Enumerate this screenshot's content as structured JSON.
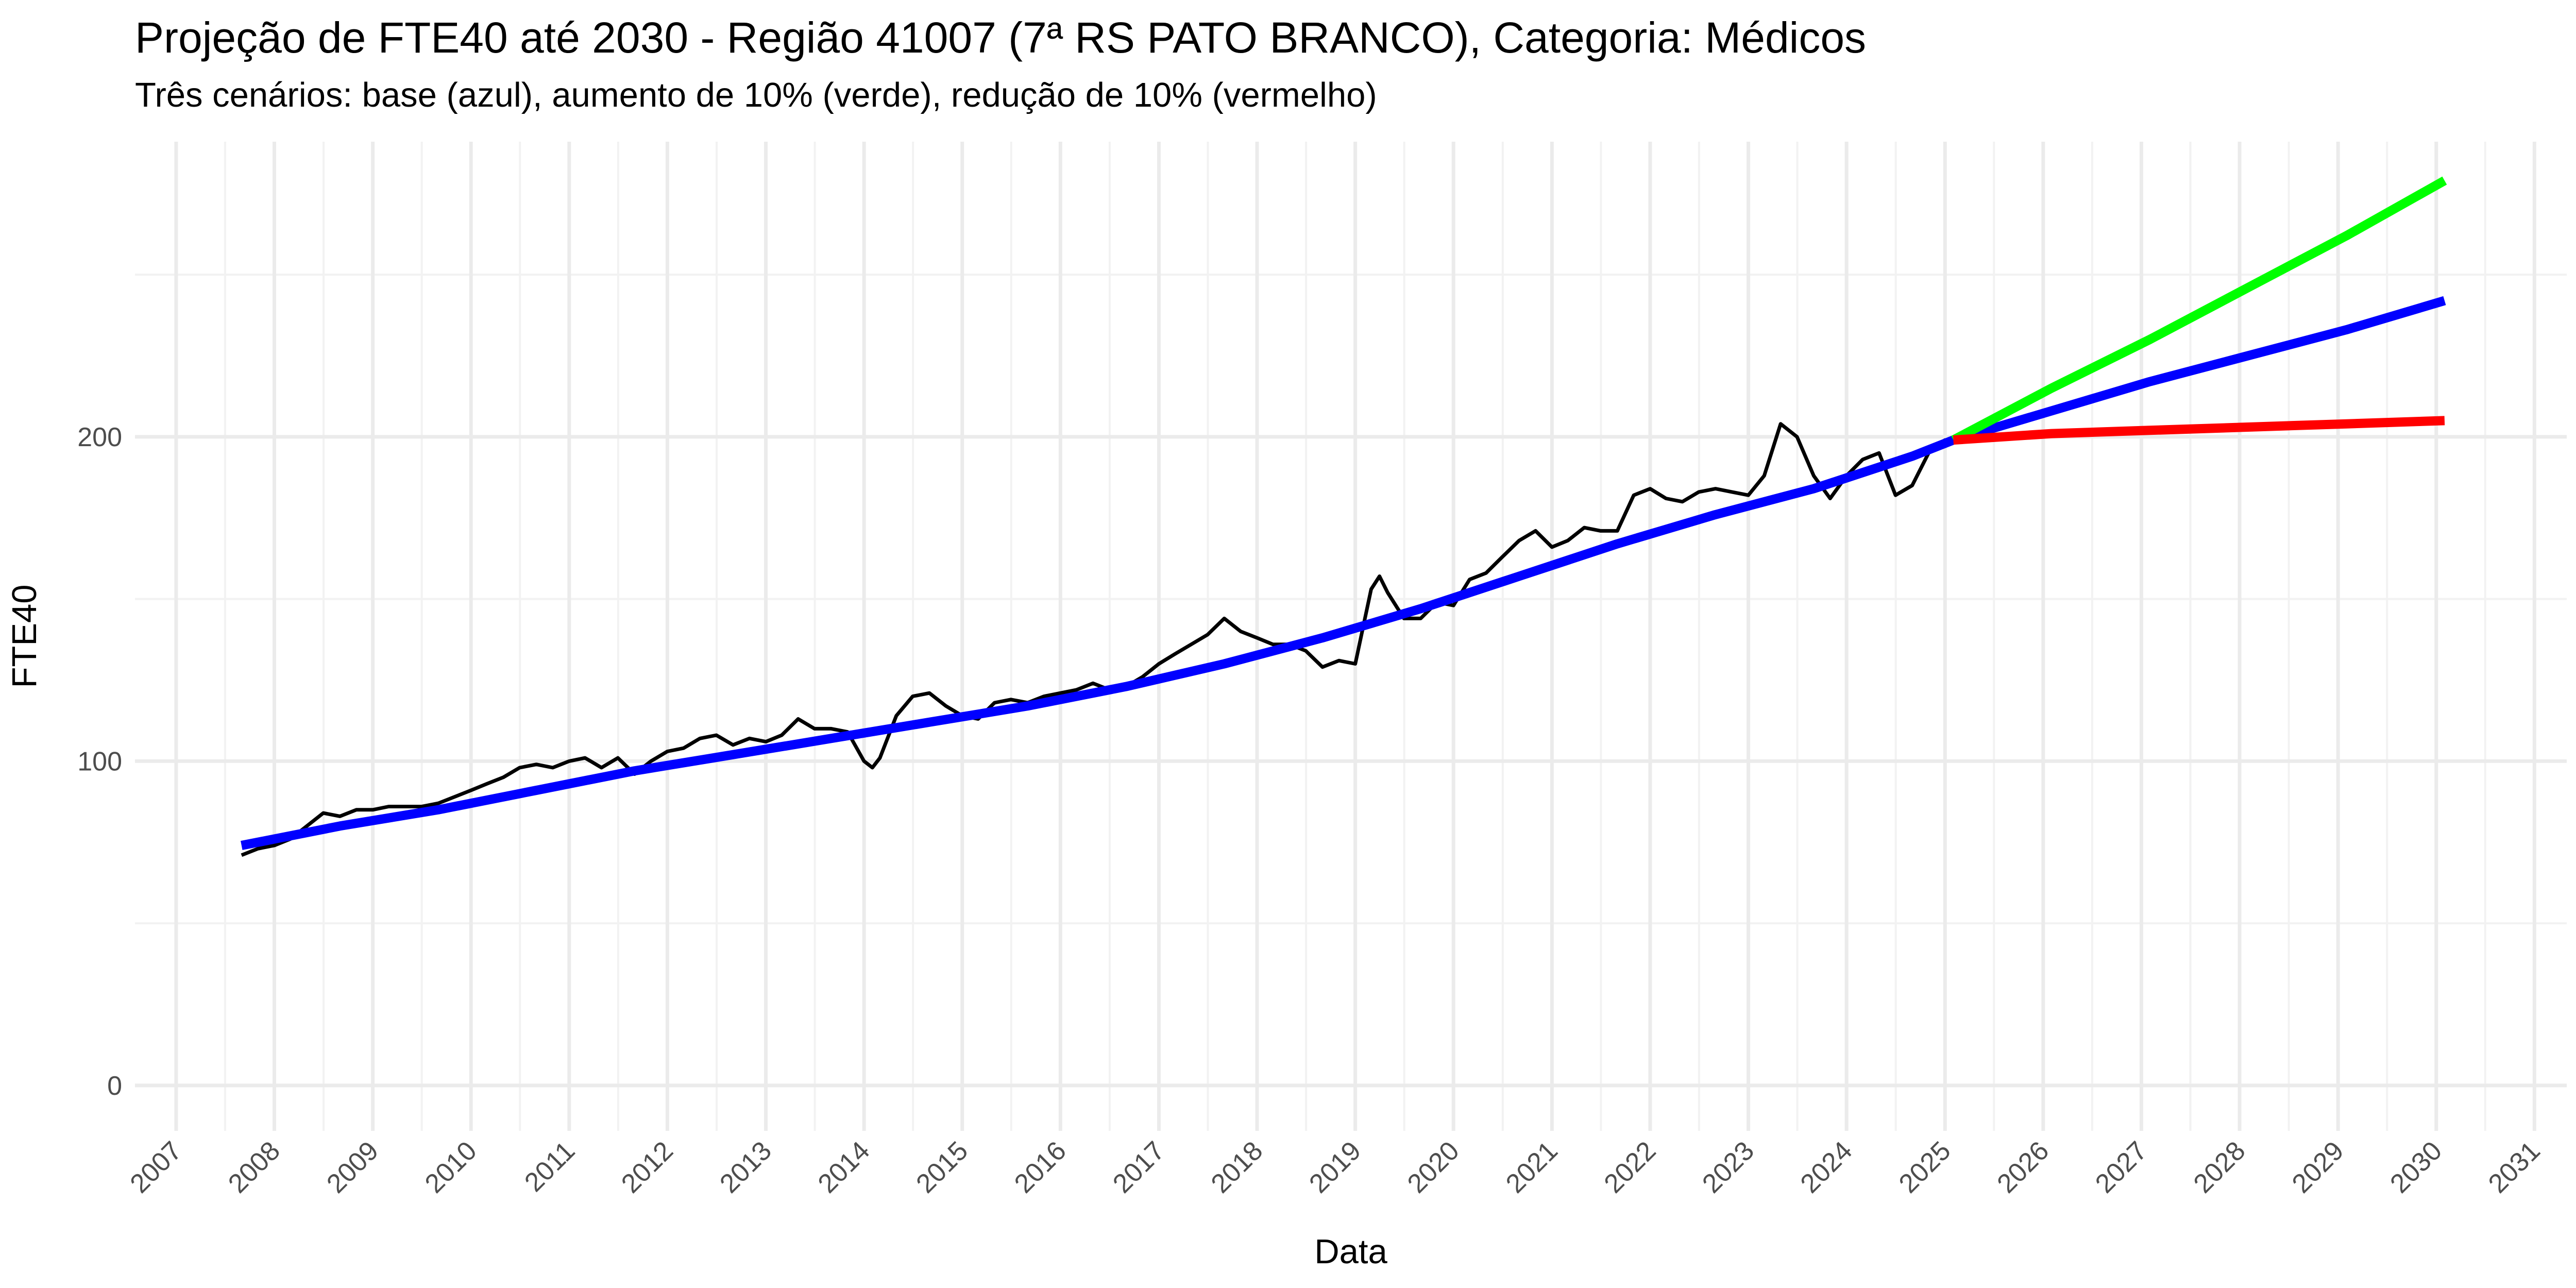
{
  "chart_data": {
    "type": "line",
    "title": "Projeção de FTE40 até 2030 - Região 41007 (7ª RS PATO BRANCO), Categoria: Médicos",
    "subtitle": "Três cenários: base (azul), aumento de 10% (verde), redução de 10% (vermelho)",
    "xlabel": "Data",
    "ylabel": "FTE40",
    "xlim": [
      "2006-08-01",
      "2031-05-01"
    ],
    "ylim": [
      -14,
      291
    ],
    "y_ticks": [
      0,
      100,
      200
    ],
    "y_minor_ticks": [
      50,
      150,
      250
    ],
    "x_ticks": [
      "2007",
      "2008",
      "2009",
      "2010",
      "2011",
      "2012",
      "2013",
      "2014",
      "2015",
      "2016",
      "2017",
      "2018",
      "2019",
      "2020",
      "2021",
      "2022",
      "2023",
      "2024",
      "2025",
      "2026",
      "2027",
      "2028",
      "2029",
      "2030",
      "2031"
    ],
    "grid": true,
    "legend": "none",
    "series": [
      {
        "color": "#000000",
        "x": [
          "2007-09",
          "2007-11",
          "2008-01",
          "2008-03",
          "2008-05",
          "2008-07",
          "2008-09",
          "2008-11",
          "2009-01",
          "2009-03",
          "2009-05",
          "2009-07",
          "2009-09",
          "2009-11",
          "2010-01",
          "2010-03",
          "2010-05",
          "2010-07",
          "2010-09",
          "2010-11",
          "2011-01",
          "2011-03",
          "2011-05",
          "2011-07",
          "2011-09",
          "2011-11",
          "2012-01",
          "2012-03",
          "2012-05",
          "2012-07",
          "2012-09",
          "2012-11",
          "2013-01",
          "2013-03",
          "2013-05",
          "2013-07",
          "2013-09",
          "2013-11",
          "2014-01",
          "2014-02",
          "2014-03",
          "2014-05",
          "2014-07",
          "2014-09",
          "2014-11",
          "2015-01",
          "2015-03",
          "2015-05",
          "2015-07",
          "2015-09",
          "2015-11",
          "2016-01",
          "2016-03",
          "2016-05",
          "2016-07",
          "2016-09",
          "2016-11",
          "2017-01",
          "2017-03",
          "2017-05",
          "2017-07",
          "2017-09",
          "2017-11",
          "2018-01",
          "2018-03",
          "2018-05",
          "2018-07",
          "2018-09",
          "2018-11",
          "2019-01",
          "2019-03",
          "2019-04",
          "2019-05",
          "2019-07",
          "2019-09",
          "2019-11",
          "2020-01",
          "2020-03",
          "2020-05",
          "2020-07",
          "2020-09",
          "2020-11",
          "2021-01",
          "2021-03",
          "2021-05",
          "2021-07",
          "2021-09",
          "2021-11",
          "2022-01",
          "2022-03",
          "2022-05",
          "2022-07",
          "2022-09",
          "2022-11",
          "2023-01",
          "2023-03",
          "2023-05",
          "2023-07",
          "2023-09",
          "2023-11",
          "2024-01",
          "2024-03",
          "2024-05",
          "2024-07",
          "2024-09",
          "2024-11",
          "2025-01",
          "2025-03"
        ],
        "values": [
          71,
          73,
          74,
          76,
          80,
          84,
          83,
          85,
          85,
          86,
          86,
          86,
          87,
          89,
          91,
          93,
          95,
          98,
          99,
          98,
          100,
          101,
          98,
          101,
          96,
          100,
          103,
          104,
          107,
          108,
          105,
          107,
          106,
          108,
          113,
          110,
          110,
          109,
          100,
          98,
          101,
          114,
          120,
          121,
          117,
          114,
          113,
          118,
          119,
          118,
          120,
          121,
          122,
          124,
          122,
          123,
          126,
          130,
          133,
          136,
          139,
          144,
          140,
          138,
          136,
          136,
          134,
          129,
          131,
          130,
          153,
          157,
          152,
          144,
          144,
          149,
          148,
          156,
          158,
          163,
          168,
          171,
          166,
          168,
          172,
          171,
          171,
          182,
          184,
          181,
          180,
          183,
          184,
          183,
          182,
          188,
          204,
          200,
          188,
          181,
          188,
          193,
          195,
          182,
          185,
          195,
          199,
          199
        ],
        "width": 7
      },
      {
        "color": "#0000ff",
        "x": [
          "2007-09",
          "2008-09",
          "2009-09",
          "2010-09",
          "2011-09",
          "2012-09",
          "2013-09",
          "2014-09",
          "2015-09",
          "2016-09",
          "2017-09",
          "2018-09",
          "2019-09",
          "2020-09",
          "2021-09",
          "2022-09",
          "2023-09",
          "2024-09",
          "2025-02",
          "2026-02",
          "2027-02",
          "2028-02",
          "2029-02",
          "2030-02"
        ],
        "values": [
          74,
          80,
          85,
          91,
          97,
          102,
          107,
          112,
          117,
          123,
          130,
          138,
          147,
          157,
          167,
          176,
          184,
          194,
          199,
          208,
          217,
          225,
          233,
          242
        ],
        "width": 18
      },
      {
        "color": "#00ff00",
        "x": [
          "2025-02",
          "2026-02",
          "2027-02",
          "2028-02",
          "2029-02",
          "2030-02"
        ],
        "values": [
          199,
          215,
          230,
          246,
          262,
          279
        ],
        "width": 18
      },
      {
        "color": "#ff0000",
        "x": [
          "2025-02",
          "2026-02",
          "2027-02",
          "2028-02",
          "2029-02",
          "2030-02"
        ],
        "values": [
          199,
          201,
          202,
          203,
          204,
          205
        ],
        "width": 18
      }
    ]
  }
}
